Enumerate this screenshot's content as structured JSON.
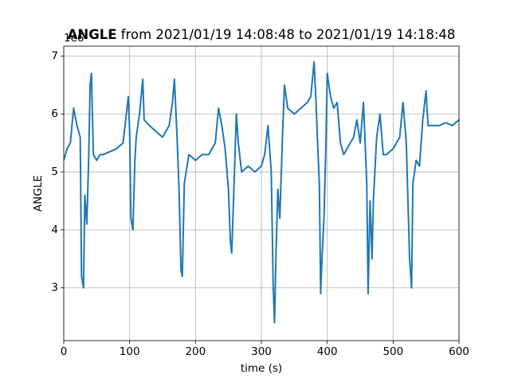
{
  "chart_data": {
    "type": "line",
    "title": {
      "bold": "ANGLE",
      "text": "from 2021/01/19 14:08:48 to 2021/01/19 14:18:48"
    },
    "offset_text": "1e6",
    "x_label": "time (s)",
    "y_label": "ANGLE",
    "x": [
      0,
      5,
      10,
      15,
      20,
      25,
      27,
      30,
      32,
      35,
      38,
      40,
      42,
      45,
      50,
      55,
      60,
      70,
      80,
      90,
      95,
      98,
      100,
      102,
      105,
      108,
      110,
      115,
      120,
      122,
      130,
      140,
      150,
      160,
      165,
      168,
      172,
      175,
      178,
      180,
      183,
      190,
      200,
      210,
      220,
      230,
      235,
      240,
      245,
      250,
      253,
      255,
      258,
      262,
      265,
      270,
      280,
      290,
      300,
      305,
      310,
      315,
      318,
      320,
      322,
      325,
      328,
      332,
      335,
      340,
      350,
      360,
      370,
      375,
      380,
      383,
      385,
      388,
      390,
      392,
      395,
      398,
      400,
      405,
      410,
      415,
      420,
      425,
      430,
      440,
      445,
      450,
      455,
      460,
      462,
      465,
      468,
      470,
      475,
      480,
      485,
      490,
      500,
      510,
      515,
      520,
      525,
      528,
      530,
      535,
      540,
      545,
      550,
      553,
      560,
      570,
      580,
      590,
      600
    ],
    "series": [
      {
        "name": "ANGLE",
        "color": "#1f77b4",
        "values": [
          5.2,
          5.4,
          5.5,
          6.1,
          5.8,
          5.6,
          3.2,
          3.0,
          4.6,
          4.1,
          5.3,
          6.5,
          6.7,
          5.3,
          5.2,
          5.3,
          5.3,
          5.35,
          5.4,
          5.5,
          6.0,
          6.3,
          5.7,
          4.2,
          4.0,
          5.2,
          5.6,
          6.0,
          6.6,
          5.9,
          5.8,
          5.7,
          5.6,
          5.8,
          6.2,
          6.6,
          5.6,
          4.7,
          3.3,
          3.2,
          4.8,
          5.3,
          5.2,
          5.3,
          5.3,
          5.5,
          6.1,
          5.8,
          5.4,
          4.7,
          3.8,
          3.6,
          4.6,
          6.0,
          5.5,
          5.0,
          5.1,
          5.0,
          5.1,
          5.3,
          5.8,
          5.0,
          3.0,
          2.4,
          3.5,
          4.7,
          4.2,
          5.6,
          6.5,
          6.1,
          6.0,
          6.1,
          6.2,
          6.3,
          6.9,
          6.2,
          5.6,
          4.8,
          2.9,
          3.5,
          4.2,
          5.5,
          6.7,
          6.3,
          6.1,
          6.2,
          5.5,
          5.3,
          5.4,
          5.6,
          5.9,
          5.5,
          6.2,
          4.8,
          2.9,
          4.5,
          3.5,
          4.5,
          5.6,
          6.0,
          5.3,
          5.3,
          5.4,
          5.6,
          6.2,
          5.5,
          3.5,
          3.0,
          4.8,
          5.2,
          5.1,
          5.9,
          6.4,
          5.8,
          5.8,
          5.8,
          5.85,
          5.8,
          5.9
        ]
      }
    ],
    "xlim": [
      0,
      600
    ],
    "ylim": [
      2.09,
      7.17
    ],
    "xticks": [
      0,
      100,
      200,
      300,
      400,
      500,
      600
    ],
    "yticks": [
      3,
      4,
      5,
      6,
      7
    ],
    "grid": true
  }
}
